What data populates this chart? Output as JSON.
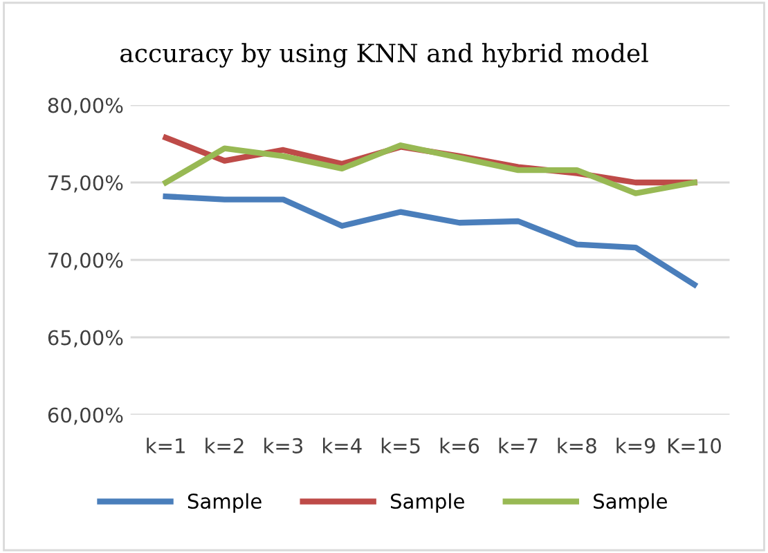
{
  "chart_data": {
    "type": "line",
    "title": "accuracy by using KNN and hybrid model",
    "categories": [
      "k=1",
      "k=2",
      "k=3",
      "k=4",
      "k=5",
      "k=6",
      "k=7",
      "k=8",
      "k=9",
      "K=10"
    ],
    "series": [
      {
        "name": "Sample",
        "color": "#4a7ebb",
        "values": [
          74.1,
          73.9,
          73.9,
          72.2,
          73.1,
          72.4,
          72.5,
          71.0,
          70.8,
          68.4
        ]
      },
      {
        "name": "Sample",
        "color": "#be4b48",
        "values": [
          77.9,
          76.4,
          77.1,
          76.2,
          77.3,
          76.7,
          76.0,
          75.6,
          75.0,
          75.0
        ]
      },
      {
        "name": "Sample",
        "color": "#98b954",
        "values": [
          75.0,
          77.2,
          76.7,
          75.9,
          77.4,
          76.6,
          75.8,
          75.8,
          74.3,
          75.0
        ]
      }
    ],
    "ylim": [
      60,
      80
    ],
    "yticks": [
      {
        "value": 60,
        "label": "60,00%"
      },
      {
        "value": 65,
        "label": "65,00%"
      },
      {
        "value": 70,
        "label": "70,00%"
      },
      {
        "value": 75,
        "label": "75,00%"
      },
      {
        "value": 80,
        "label": "80,00%"
      }
    ],
    "grid": "y",
    "legend": "bottom",
    "marker": "none",
    "line_style": "solid"
  }
}
